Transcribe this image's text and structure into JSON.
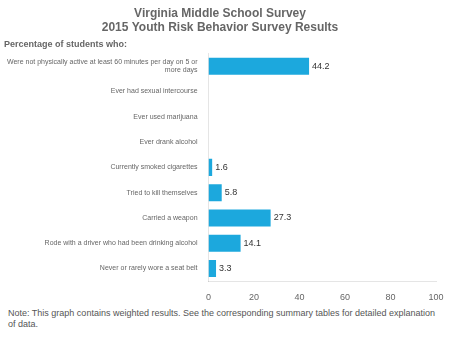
{
  "chart_data": {
    "type": "bar",
    "orientation": "horizontal",
    "title": "Virginia Middle School Survey\n2015 Youth Risk Behavior Survey Results",
    "subtitle": "Percentage of students who:",
    "annotations": [
      "Note: This graph contains weighted results. See the corresponding summary tables for detailed explanation of data."
    ],
    "categories": [
      "Were not physically active at least 60 minutes per day on 5 or\nmore days",
      "Ever had sexual intercourse",
      "Ever used marijuana",
      "Ever drank alcohol",
      "Currently smoked cigarettes",
      "Tried to kill themselves",
      "Carried a weapon",
      "Rode with a driver who had been drinking alcohol",
      "Never or rarely wore a seat belt"
    ],
    "values": [
      44.2,
      0,
      0,
      0,
      1.6,
      5.8,
      27.3,
      14.1,
      3.3
    ],
    "data_labels": true,
    "value_labels": [
      "44.2",
      null,
      null,
      null,
      "1.6",
      "5.8",
      "27.3",
      "14.1",
      "3.3"
    ],
    "color": "#1CA8DD",
    "xlim": [
      0,
      100
    ],
    "xticks": [
      0,
      20,
      40,
      60,
      80,
      100
    ],
    "grid": false
  }
}
